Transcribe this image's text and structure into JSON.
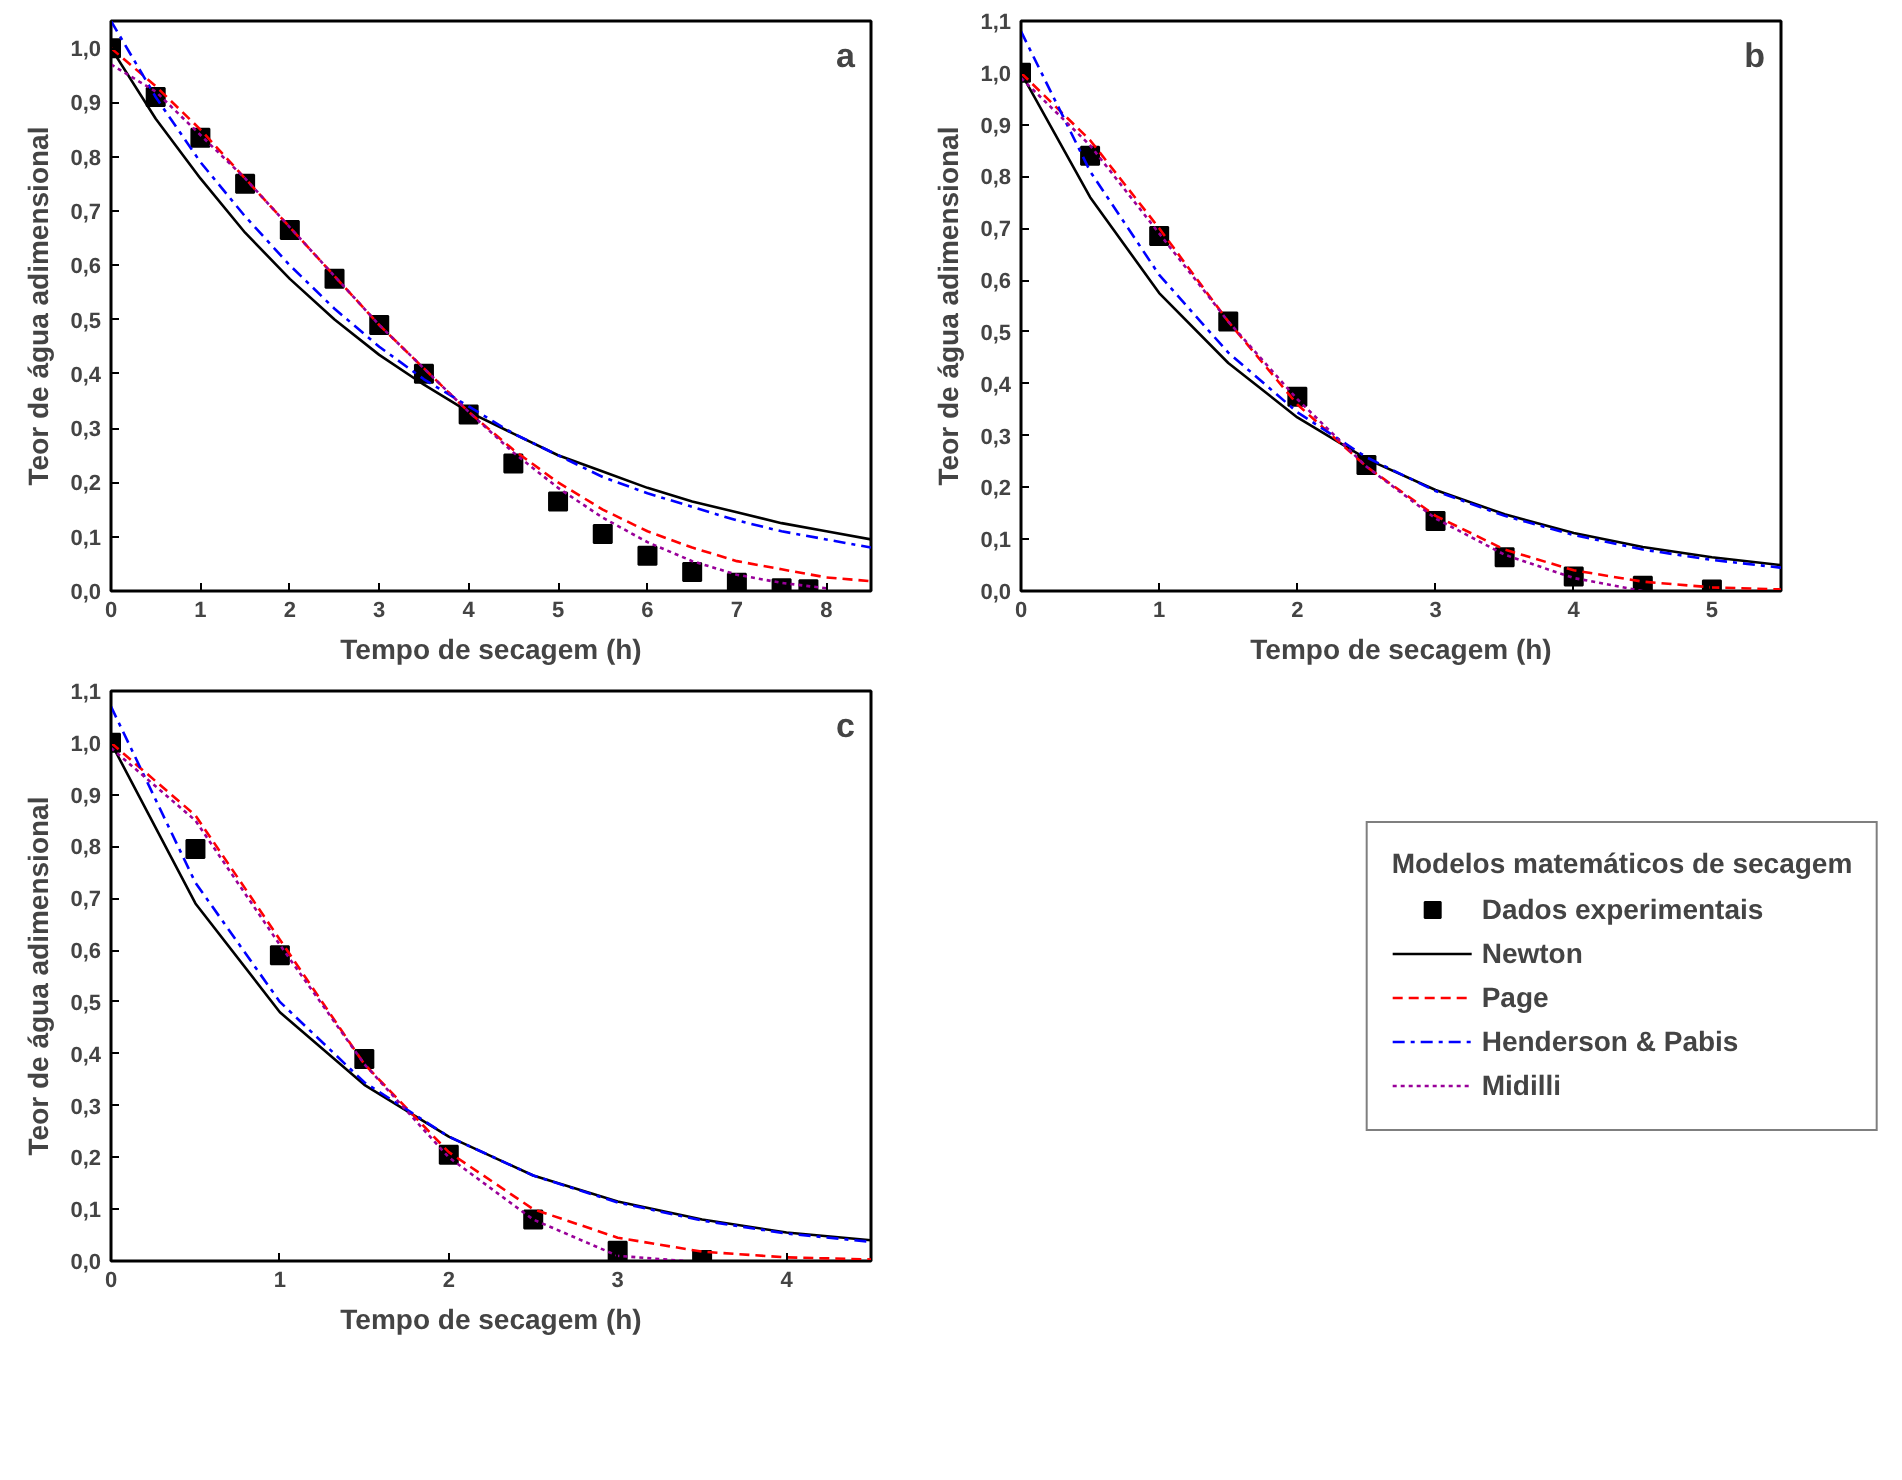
{
  "chart_data": [
    {
      "type": "line",
      "annotations": [
        "a"
      ],
      "xlabel": "Tempo de secagem (h)",
      "ylabel": "Teor de água adimensional",
      "xlim": [
        0,
        8.5
      ],
      "xticks": [
        0,
        1,
        2,
        3,
        4,
        5,
        6,
        7,
        8
      ],
      "ylim": [
        0,
        1.05
      ],
      "yticks": [
        {
          "value": 0,
          "label": "0,0"
        },
        {
          "value": 0.1,
          "label": "0,1"
        },
        {
          "value": 0.2,
          "label": "0,2"
        },
        {
          "value": 0.3,
          "label": "0,3"
        },
        {
          "value": 0.4,
          "label": "0,4"
        },
        {
          "value": 0.5,
          "label": "0,5"
        },
        {
          "value": 0.6,
          "label": "0,6"
        },
        {
          "value": 0.7,
          "label": "0,7"
        },
        {
          "value": 0.8,
          "label": "0,8"
        },
        {
          "value": 0.9,
          "label": "0,9"
        },
        {
          "value": 1.0,
          "label": "1,0"
        }
      ],
      "grid": false,
      "legend": false,
      "series": [
        {
          "type": "scatter",
          "marker": "square",
          "color": "#000000",
          "x": [
            0,
            0.5,
            1,
            1.5,
            2,
            2.5,
            3,
            3.5,
            4,
            4.5,
            5,
            5.5,
            6,
            6.5,
            7,
            7.5,
            7.8
          ],
          "values": [
            1.0,
            0.91,
            0.835,
            0.75,
            0.665,
            0.575,
            0.49,
            0.4,
            0.325,
            0.235,
            0.165,
            0.105,
            0.065,
            0.035,
            0.015,
            0.005,
            0.003
          ]
        },
        {
          "type": "line",
          "line_style": "solid",
          "color": "#000000",
          "x": [
            0,
            0.5,
            1,
            1.5,
            2,
            2.5,
            3,
            3.5,
            4,
            4.5,
            5,
            5.5,
            6,
            6.5,
            7,
            7.5,
            8,
            8.5
          ],
          "values": [
            1.0,
            0.87,
            0.76,
            0.66,
            0.575,
            0.5,
            0.435,
            0.38,
            0.33,
            0.29,
            0.25,
            0.22,
            0.19,
            0.165,
            0.145,
            0.125,
            0.11,
            0.095
          ]
        },
        {
          "type": "line",
          "line_style": "dashed",
          "color": "#ff0000",
          "x": [
            0,
            0.5,
            1,
            1.5,
            2,
            2.5,
            3,
            3.5,
            4,
            4.5,
            5,
            5.5,
            6,
            6.5,
            7,
            7.5,
            8,
            8.5
          ],
          "values": [
            1.0,
            0.93,
            0.85,
            0.76,
            0.67,
            0.58,
            0.49,
            0.41,
            0.33,
            0.26,
            0.2,
            0.15,
            0.11,
            0.08,
            0.055,
            0.04,
            0.025,
            0.018
          ]
        },
        {
          "type": "line",
          "line_style": "dashdot",
          "color": "#0000ff",
          "x": [
            0,
            0.5,
            1,
            1.5,
            2,
            2.5,
            3,
            3.5,
            4,
            4.5,
            5,
            5.5,
            6,
            6.5,
            7,
            7.5,
            8,
            8.5
          ],
          "values": [
            1.05,
            0.91,
            0.79,
            0.69,
            0.6,
            0.52,
            0.45,
            0.39,
            0.34,
            0.29,
            0.25,
            0.21,
            0.18,
            0.155,
            0.13,
            0.11,
            0.095,
            0.08
          ]
        },
        {
          "type": "line",
          "line_style": "dotted",
          "color": "#990099",
          "x": [
            0,
            0.5,
            1,
            1.5,
            2,
            2.5,
            3,
            3.5,
            4,
            4.5,
            5,
            5.5,
            6,
            6.5,
            7,
            7.5,
            8
          ],
          "values": [
            0.97,
            0.92,
            0.84,
            0.76,
            0.67,
            0.58,
            0.49,
            0.41,
            0.33,
            0.255,
            0.19,
            0.135,
            0.09,
            0.055,
            0.03,
            0.015,
            0.005
          ]
        }
      ]
    },
    {
      "type": "line",
      "annotations": [
        "b"
      ],
      "xlabel": "Tempo de secagem (h)",
      "ylabel": "Teor de água adimensional",
      "xlim": [
        0,
        5.5
      ],
      "xticks": [
        0,
        1,
        2,
        3,
        4,
        5
      ],
      "ylim": [
        0,
        1.1
      ],
      "yticks": [
        {
          "value": 0,
          "label": "0,0"
        },
        {
          "value": 0.1,
          "label": "0,1"
        },
        {
          "value": 0.2,
          "label": "0,2"
        },
        {
          "value": 0.3,
          "label": "0,3"
        },
        {
          "value": 0.4,
          "label": "0,4"
        },
        {
          "value": 0.5,
          "label": "0,5"
        },
        {
          "value": 0.6,
          "label": "0,6"
        },
        {
          "value": 0.7,
          "label": "0,7"
        },
        {
          "value": 0.8,
          "label": "0,8"
        },
        {
          "value": 0.9,
          "label": "0,9"
        },
        {
          "value": 1.0,
          "label": "1,0"
        },
        {
          "value": 1.1,
          "label": "1,1"
        }
      ],
      "grid": false,
      "legend": false,
      "series": [
        {
          "type": "scatter",
          "marker": "square",
          "color": "#000000",
          "x": [
            0,
            0.5,
            1,
            1.5,
            2,
            2.5,
            3,
            3.5,
            4,
            4.5,
            5
          ],
          "values": [
            1.0,
            0.84,
            0.685,
            0.52,
            0.375,
            0.243,
            0.135,
            0.065,
            0.028,
            0.01,
            0.003
          ]
        },
        {
          "type": "line",
          "line_style": "solid",
          "color": "#000000",
          "x": [
            0,
            0.5,
            1,
            1.5,
            2,
            2.5,
            3,
            3.5,
            4,
            4.5,
            5,
            5.5
          ],
          "values": [
            1.0,
            0.76,
            0.575,
            0.44,
            0.335,
            0.255,
            0.195,
            0.148,
            0.112,
            0.085,
            0.065,
            0.05
          ]
        },
        {
          "type": "line",
          "line_style": "dashed",
          "color": "#ff0000",
          "x": [
            0,
            0.5,
            1,
            1.5,
            2,
            2.5,
            3,
            3.5,
            4,
            4.5,
            5,
            5.5
          ],
          "values": [
            1.0,
            0.87,
            0.7,
            0.52,
            0.36,
            0.24,
            0.145,
            0.08,
            0.04,
            0.018,
            0.007,
            0.003
          ]
        },
        {
          "type": "line",
          "line_style": "dashdot",
          "color": "#0000ff",
          "x": [
            0,
            0.5,
            1,
            1.5,
            2,
            2.5,
            3,
            3.5,
            4,
            4.5,
            5,
            5.5
          ],
          "values": [
            1.08,
            0.81,
            0.61,
            0.46,
            0.345,
            0.258,
            0.193,
            0.145,
            0.108,
            0.08,
            0.06,
            0.045
          ]
        },
        {
          "type": "line",
          "line_style": "dotted",
          "color": "#990099",
          "x": [
            0,
            0.5,
            1,
            1.5,
            2,
            2.5,
            3,
            3.5,
            4,
            4.5
          ],
          "values": [
            0.99,
            0.86,
            0.69,
            0.52,
            0.37,
            0.24,
            0.14,
            0.07,
            0.025,
            0.0
          ]
        }
      ]
    },
    {
      "type": "line",
      "annotations": [
        "c"
      ],
      "xlabel": "Tempo de secagem (h)",
      "ylabel": "Teor de água adimensional",
      "xlim": [
        0,
        4.5
      ],
      "xticks": [
        0,
        1,
        2,
        3,
        4
      ],
      "ylim": [
        0,
        1.1
      ],
      "yticks": [
        {
          "value": 0,
          "label": "0,0"
        },
        {
          "value": 0.1,
          "label": "0,1"
        },
        {
          "value": 0.2,
          "label": "0,2"
        },
        {
          "value": 0.3,
          "label": "0,3"
        },
        {
          "value": 0.4,
          "label": "0,4"
        },
        {
          "value": 0.5,
          "label": "0,5"
        },
        {
          "value": 0.6,
          "label": "0,6"
        },
        {
          "value": 0.7,
          "label": "0,7"
        },
        {
          "value": 0.8,
          "label": "0,8"
        },
        {
          "value": 0.9,
          "label": "0,9"
        },
        {
          "value": 1.0,
          "label": "1,0"
        },
        {
          "value": 1.1,
          "label": "1,1"
        }
      ],
      "grid": false,
      "legend": "right",
      "legend_title": "Modelos matemáticos de secagem",
      "series": [
        {
          "type": "scatter",
          "name": "Dados experimentais",
          "marker": "square",
          "color": "#000000",
          "x": [
            0,
            0.5,
            1,
            1.5,
            2,
            2.5,
            3,
            3.5
          ],
          "values": [
            1.0,
            0.795,
            0.59,
            0.39,
            0.205,
            0.08,
            0.02,
            0.002
          ]
        },
        {
          "type": "line",
          "name": "Newton",
          "line_style": "solid",
          "color": "#000000",
          "x": [
            0,
            0.5,
            1,
            1.5,
            2,
            2.5,
            3,
            3.5,
            4,
            4.5
          ],
          "values": [
            1.0,
            0.69,
            0.48,
            0.34,
            0.24,
            0.165,
            0.115,
            0.08,
            0.055,
            0.04
          ]
        },
        {
          "type": "line",
          "name": "Page",
          "line_style": "dashed",
          "color": "#ff0000",
          "x": [
            0,
            0.5,
            1,
            1.5,
            2,
            2.5,
            3,
            3.5,
            4,
            4.5
          ],
          "values": [
            1.0,
            0.86,
            0.62,
            0.38,
            0.21,
            0.1,
            0.045,
            0.018,
            0.007,
            0.003
          ]
        },
        {
          "type": "line",
          "name": "Henderson & Pabis",
          "line_style": "dashdot",
          "color": "#0000ff",
          "x": [
            0,
            0.5,
            1,
            1.5,
            2,
            2.5,
            3,
            3.5,
            4,
            4.5
          ],
          "values": [
            1.07,
            0.73,
            0.5,
            0.345,
            0.24,
            0.165,
            0.113,
            0.078,
            0.053,
            0.037
          ]
        },
        {
          "type": "line",
          "name": "Midilli",
          "line_style": "dotted",
          "color": "#990099",
          "x": [
            0,
            0.5,
            1,
            1.5,
            2,
            2.5,
            3,
            3.4
          ],
          "values": [
            0.99,
            0.85,
            0.61,
            0.38,
            0.2,
            0.08,
            0.01,
            0.0
          ]
        }
      ]
    }
  ]
}
